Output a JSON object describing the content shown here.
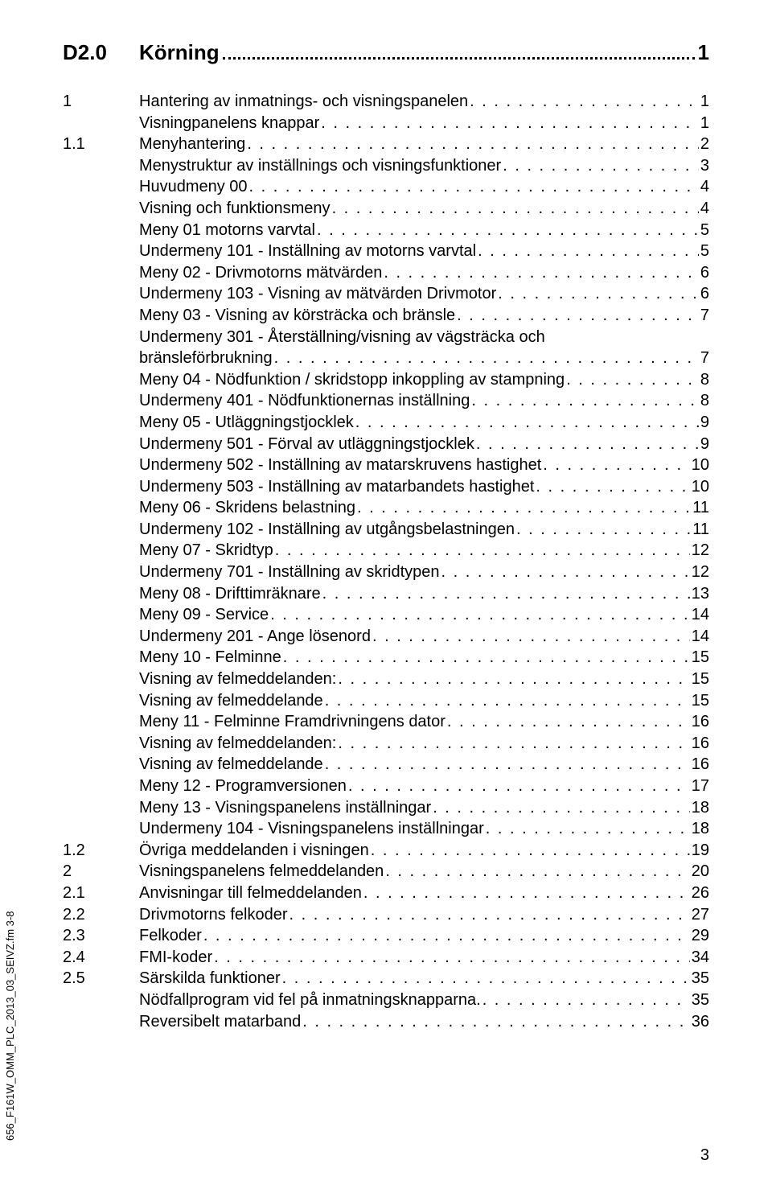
{
  "chapter": {
    "num": "D2.0",
    "title": "Körning",
    "page": "1"
  },
  "toc": [
    {
      "num": "1",
      "title": "Hantering av inmatnings- och visningspanelen",
      "page": "1"
    },
    {
      "num": "",
      "title": "Visningpanelens knappar",
      "page": "1"
    },
    {
      "num": "1.1",
      "title": "Menyhantering",
      "page": "2"
    },
    {
      "num": "",
      "title": "Menystruktur av inställnings och visningsfunktioner",
      "page": "3"
    },
    {
      "num": "",
      "title": "Huvudmeny 00",
      "page": "4"
    },
    {
      "num": "",
      "title": "Visning och funktionsmeny",
      "page": "4"
    },
    {
      "num": "",
      "title": "Meny 01 motorns varvtal",
      "page": "5"
    },
    {
      "num": "",
      "title": "Undermeny 101 - Inställning av motorns varvtal",
      "page": "5"
    },
    {
      "num": "",
      "title": "Meny 02 - Drivmotorns mätvärden",
      "page": "6"
    },
    {
      "num": "",
      "title": "Undermeny 103 - Visning av mätvärden Drivmotor",
      "page": "6"
    },
    {
      "num": "",
      "title": "Meny 03 - Visning av körsträcka och bränsle",
      "page": "7"
    },
    {
      "num": "",
      "title": "Undermeny 301 - Återställning/visning av vägsträcka och",
      "wrap": true
    },
    {
      "num": "",
      "title": "bränsleförbrukning",
      "page": "7",
      "cont": true
    },
    {
      "num": "",
      "title": "Meny 04 - Nödfunktion  / skridstopp inkoppling av stampning",
      "page": "8"
    },
    {
      "num": "",
      "title": "Undermeny 401 - Nödfunktionernas inställning",
      "page": "8"
    },
    {
      "num": "",
      "title": "Meny 05 - Utläggningstjocklek",
      "page": "9"
    },
    {
      "num": "",
      "title": "Undermeny 501 - Förval av utläggningstjocklek",
      "page": "9"
    },
    {
      "num": "",
      "title": "Undermeny 502 - Inställning av matarskruvens hastighet",
      "page": "10"
    },
    {
      "num": "",
      "title": "Undermeny 503 - Inställning av matarbandets hastighet ",
      "page": "10"
    },
    {
      "num": "",
      "title": "Meny 06 - Skridens belastning",
      "page": "11"
    },
    {
      "num": "",
      "title": "Undermeny 102 - Inställning av utgångsbelastningen",
      "page": "11"
    },
    {
      "num": "",
      "title": "Meny 07 - Skridtyp",
      "page": "12"
    },
    {
      "num": "",
      "title": "Undermeny 701 - Inställning av skridtypen",
      "page": "12"
    },
    {
      "num": "",
      "title": "Meny 08 - Drifttimräknare",
      "page": "13"
    },
    {
      "num": "",
      "title": "Meny 09 - Service",
      "page": "14"
    },
    {
      "num": "",
      "title": "Undermeny 201 - Ange lösenord",
      "page": "14"
    },
    {
      "num": "",
      "title": "Meny 10 - Felminne",
      "page": "15"
    },
    {
      "num": "",
      "title": "Visning av felmeddelanden:",
      "page": "15"
    },
    {
      "num": "",
      "title": "Visning av felmeddelande",
      "page": "15"
    },
    {
      "num": "",
      "title": "Meny 11 - Felminne Framdrivningens dator",
      "page": "16"
    },
    {
      "num": "",
      "title": "Visning av felmeddelanden:",
      "page": "16"
    },
    {
      "num": "",
      "title": "Visning av felmeddelande",
      "page": "16"
    },
    {
      "num": "",
      "title": "Meny 12 - Programversionen",
      "page": "17"
    },
    {
      "num": "",
      "title": "Meny 13 - Visningspanelens inställningar",
      "page": "18"
    },
    {
      "num": "",
      "title": "Undermeny 104 - Visningspanelens inställningar",
      "page": "18"
    },
    {
      "num": "1.2",
      "title": "Övriga meddelanden i visningen",
      "page": "19"
    },
    {
      "num": "2",
      "title": "Visningspanelens felmeddelanden",
      "page": "20"
    },
    {
      "num": "2.1",
      "title": "Anvisningar till felmeddelanden",
      "page": "26"
    },
    {
      "num": "2.2",
      "title": "Drivmotorns felkoder",
      "page": "27"
    },
    {
      "num": "2.3",
      "title": "Felkoder",
      "page": "29"
    },
    {
      "num": "2.4",
      "title": "FMI-koder",
      "page": "34"
    },
    {
      "num": "2.5",
      "title": "Särskilda funktioner",
      "page": "35"
    },
    {
      "num": "",
      "title": "Nödfallprogram vid fel på inmatningsknapparna.",
      "page": "35"
    },
    {
      "num": "",
      "title": "Reversibelt matarband",
      "page": "36"
    }
  ],
  "side_label": "656_F161W_OMM_PLC_2013_03_SEIVZ.fm 3-8",
  "page_number": "3",
  "dot_fill": ". . . . . . . . . . . . . . . . . . . . . . . . . . . . . . . . . . . . . . . . . . . . . . . . . . . . . . . . . . . . . . . . . . . . . . . . . . . . . . . . . . . . . . . . . . . . . . . . . . . . . . . . . . . . . . . . . . . . . . . . . . . . . . . . . . . . . . . . . . . . . . . . . . . . . ."
}
